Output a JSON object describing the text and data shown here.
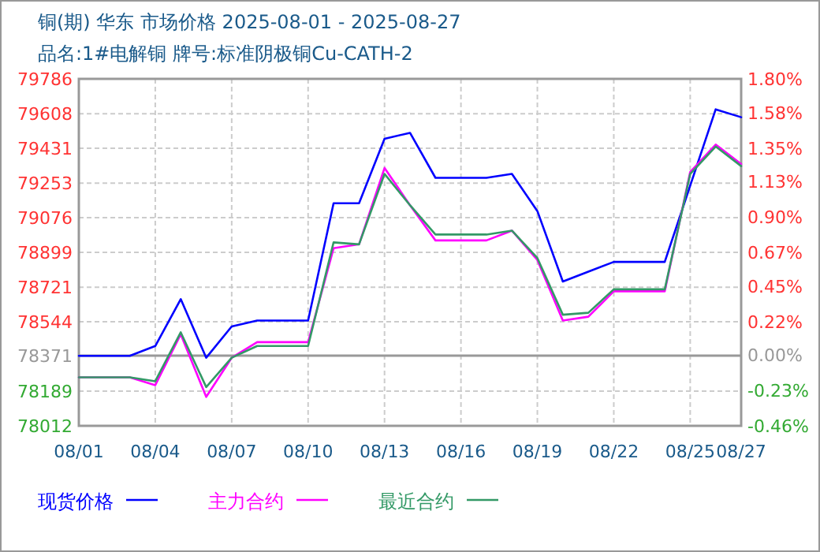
{
  "chart_data": {
    "type": "line",
    "title": "铜(期) 华东 市场价格 2025-08-01 - 2025-08-27",
    "subtitle": "品名:1#电解铜 牌号:标准阴极铜Cu-CATH-2",
    "x": [
      "2025-08-01",
      "2025-08-03",
      "2025-08-04",
      "2025-08-05",
      "2025-08-06",
      "2025-08-07",
      "2025-08-08",
      "2025-08-10",
      "2025-08-11",
      "2025-08-12",
      "2025-08-13",
      "2025-08-14",
      "2025-08-15",
      "2025-08-17",
      "2025-08-18",
      "2025-08-19",
      "2025-08-20",
      "2025-08-21",
      "2025-08-22",
      "2025-08-24",
      "2025-08-25",
      "2025-08-26",
      "2025-08-27"
    ],
    "series": [
      {
        "name": "现货价格",
        "color": "#0000ff",
        "values": [
          78370,
          78370,
          78420,
          78660,
          78360,
          78520,
          78550,
          78550,
          79150,
          79150,
          79480,
          79510,
          79280,
          79280,
          79300,
          79110,
          78750,
          78800,
          78850,
          78850,
          79240,
          79630,
          79590
        ]
      },
      {
        "name": "主力合约",
        "color": "#ff00ff",
        "values": [
          78260,
          78260,
          78220,
          78480,
          78160,
          78360,
          78440,
          78440,
          78920,
          78940,
          79330,
          79140,
          78960,
          78960,
          79010,
          78860,
          78550,
          78570,
          78700,
          78700,
          79310,
          79450,
          79350
        ]
      },
      {
        "name": "最近合约",
        "color": "#339966",
        "values": [
          78260,
          78260,
          78240,
          78490,
          78210,
          78360,
          78420,
          78420,
          78950,
          78940,
          79300,
          79140,
          78990,
          78990,
          79010,
          78870,
          78580,
          78590,
          78710,
          78710,
          79300,
          79440,
          79340
        ]
      }
    ],
    "xlim": [
      "2025-08-01",
      "2025-08-27"
    ],
    "xticks": [
      {
        "value": "2025-08-01",
        "label": "08/01"
      },
      {
        "value": "2025-08-04",
        "label": "08/04"
      },
      {
        "value": "2025-08-07",
        "label": "08/07"
      },
      {
        "value": "2025-08-10",
        "label": "08/10"
      },
      {
        "value": "2025-08-13",
        "label": "08/13"
      },
      {
        "value": "2025-08-16",
        "label": "08/16"
      },
      {
        "value": "2025-08-19",
        "label": "08/19"
      },
      {
        "value": "2025-08-22",
        "label": "08/22"
      },
      {
        "value": "2025-08-25",
        "label": "08/25"
      },
      {
        "value": "2025-08-27",
        "label": "08/27"
      }
    ],
    "ylim": [
      78012,
      79786
    ],
    "yticks": [
      78012,
      78189,
      78371,
      78544,
      78721,
      78899,
      79076,
      79253,
      79431,
      79608,
      79786
    ],
    "y2lim": [
      -0.46,
      1.8
    ],
    "y2ticks": [
      {
        "value": -0.46,
        "label": "-0.46%"
      },
      {
        "value": -0.23,
        "label": "-0.23%"
      },
      {
        "value": 0,
        "label": "0.00%"
      },
      {
        "value": 0.22,
        "label": "0.22%"
      },
      {
        "value": 0.45,
        "label": "0.45%"
      },
      {
        "value": 0.67,
        "label": "0.67%"
      },
      {
        "value": 0.9,
        "label": "0.90%"
      },
      {
        "value": 1.13,
        "label": "1.13%"
      },
      {
        "value": 1.35,
        "label": "1.35%"
      },
      {
        "value": 1.58,
        "label": "1.58%"
      },
      {
        "value": 1.8,
        "label": "1.80%"
      }
    ],
    "ref_lines": [
      {
        "axis": "y",
        "value": 78371,
        "color": "#999999"
      }
    ],
    "grid": true,
    "legend": "bottom",
    "line_style": "solid",
    "marker": "none"
  }
}
